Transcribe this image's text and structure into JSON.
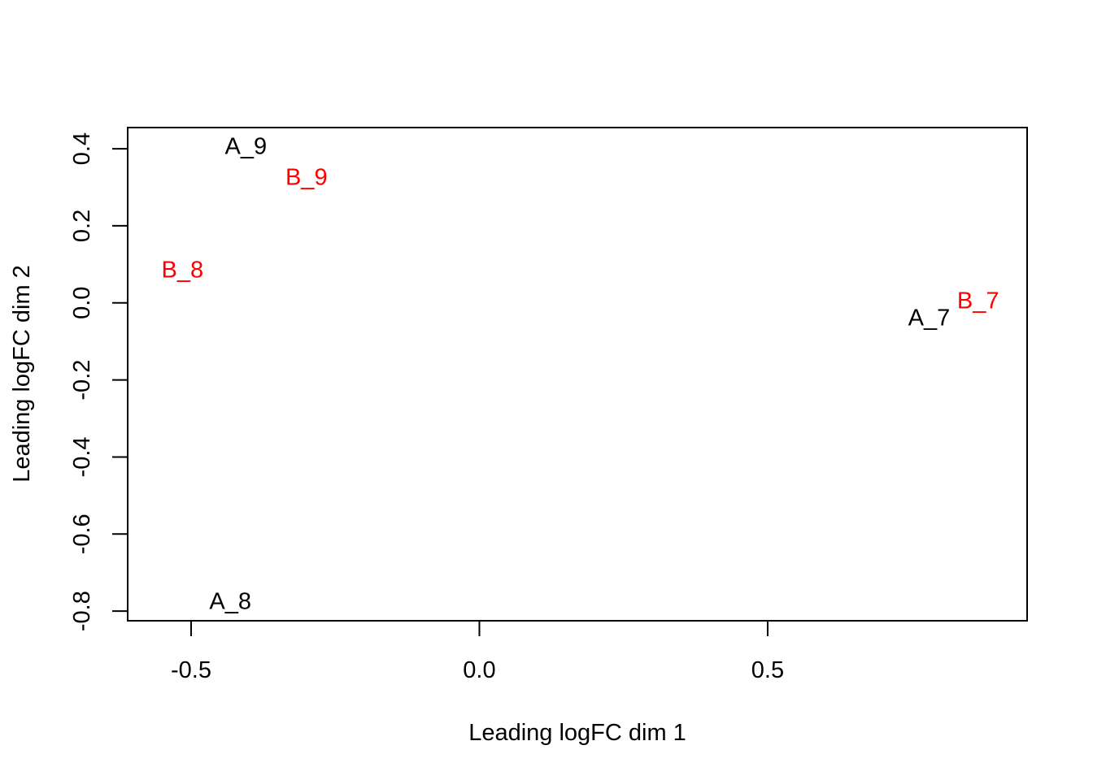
{
  "chart_data": {
    "type": "scatter",
    "title": "",
    "xlabel": "Leading logFC dim 1",
    "ylabel": "Leading logFC dim 2",
    "xlim": [
      -0.61,
      0.95
    ],
    "ylim": [
      -0.825,
      0.455
    ],
    "x_ticks": [
      -0.5,
      0.0,
      0.5
    ],
    "x_tick_labels": [
      "-0.5",
      "0.0",
      "0.5"
    ],
    "y_ticks": [
      0.4,
      0.2,
      0.0,
      -0.2,
      -0.4,
      -0.6,
      -0.8
    ],
    "y_tick_labels": [
      "0.4",
      "0.2",
      "0.0",
      "-0.2",
      "-0.4",
      "-0.6",
      "-0.8"
    ],
    "grid": false,
    "colors": {
      "A": "#000000",
      "B": "#ff0000"
    },
    "points": [
      {
        "label": "A_9",
        "group": "A",
        "x": -0.405,
        "y": 0.405
      },
      {
        "label": "B_9",
        "group": "B",
        "x": -0.3,
        "y": 0.325
      },
      {
        "label": "B_8",
        "group": "B",
        "x": -0.515,
        "y": 0.085
      },
      {
        "label": "B_7",
        "group": "B",
        "x": 0.865,
        "y": 0.005
      },
      {
        "label": "A_7",
        "group": "A",
        "x": 0.78,
        "y": -0.04
      },
      {
        "label": "A_8",
        "group": "A",
        "x": -0.432,
        "y": -0.775
      }
    ]
  }
}
